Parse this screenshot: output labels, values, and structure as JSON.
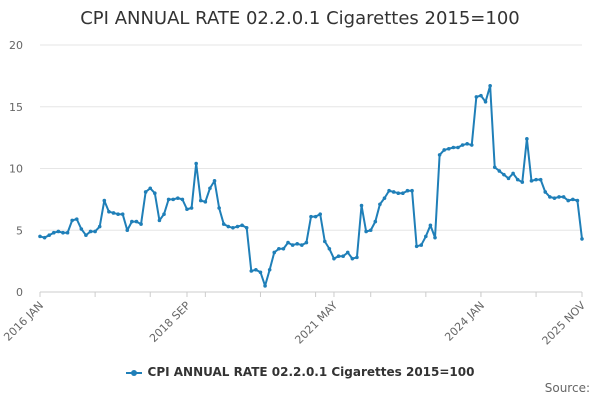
{
  "chart_data": {
    "type": "line",
    "title": "CPI ANNUAL RATE 02.2.0.1 Cigarettes 2015=100",
    "xlabel": "",
    "ylabel": "",
    "ylim": [
      0,
      20
    ],
    "yticks": [
      0,
      5,
      10,
      15,
      20
    ],
    "x_start": "2016 JAN",
    "x_end": "2025 NOV",
    "x_tick_labels": [
      {
        "label": "2016 JAN",
        "index": 0
      },
      {
        "label": "2018 SEP",
        "index": 32
      },
      {
        "label": "2021 MAY",
        "index": 64
      },
      {
        "label": "2024 JAN",
        "index": 96
      },
      {
        "label": "2025 NOV",
        "index": 118
      }
    ],
    "series": [
      {
        "name": "CPI ANNUAL RATE 02.2.0.1 Cigarettes 2015=100",
        "color": "#1f7fb8",
        "values": [
          4.5,
          4.4,
          4.6,
          4.8,
          4.9,
          4.8,
          4.8,
          5.8,
          5.9,
          5.1,
          4.6,
          4.9,
          4.9,
          5.3,
          7.4,
          6.5,
          6.4,
          6.3,
          6.3,
          5.0,
          5.7,
          5.7,
          5.5,
          8.1,
          8.4,
          8.0,
          5.8,
          6.3,
          7.5,
          7.5,
          7.6,
          7.5,
          6.7,
          6.8,
          10.4,
          7.4,
          7.3,
          8.4,
          9.0,
          6.8,
          5.5,
          5.3,
          5.2,
          5.3,
          5.4,
          5.2,
          1.7,
          1.8,
          1.6,
          0.5,
          1.8,
          3.2,
          3.5,
          3.5,
          4.0,
          3.8,
          3.9,
          3.8,
          4.0,
          6.1,
          6.1,
          6.3,
          4.1,
          3.5,
          2.7,
          2.9,
          2.9,
          3.2,
          2.7,
          2.8,
          7.0,
          4.9,
          5.0,
          5.7,
          7.1,
          7.6,
          8.2,
          8.1,
          8.0,
          8.0,
          8.2,
          8.2,
          3.7,
          3.8,
          4.5,
          5.4,
          4.4,
          11.1,
          11.5,
          11.6,
          11.7,
          11.7,
          11.9,
          12.0,
          11.9,
          15.8,
          15.9,
          15.4,
          16.7,
          10.1,
          9.8,
          9.5,
          9.2,
          9.6,
          9.1,
          8.9,
          12.4,
          9.0,
          9.1,
          9.1,
          8.1,
          7.7,
          7.6,
          7.7,
          7.7,
          7.4,
          7.5,
          7.4,
          4.3
        ]
      }
    ]
  },
  "legend": {
    "label": "CPI ANNUAL RATE 02.2.0.1 Cigarettes 2015=100"
  },
  "footer": {
    "source": "Source:"
  }
}
